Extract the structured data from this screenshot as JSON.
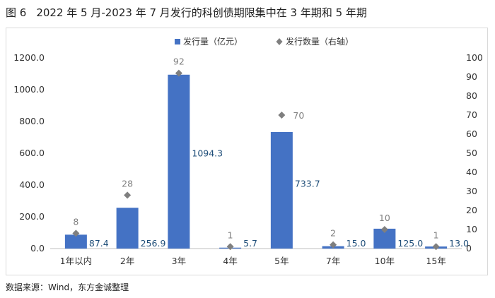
{
  "title": {
    "number": "图 6",
    "text": "2022 年 5 月-2023 年 7 月发行的科创债期限集中在 3 年期和 5 年期"
  },
  "source": "数据来源：Wind，东方金诚整理",
  "colors": {
    "bar": "#4472c4",
    "marker": "#7f7f7f",
    "bar_label": "#1f4e79",
    "count_label": "#7f7f7f"
  },
  "chart_data": {
    "type": "bar",
    "categories": [
      "1年以内",
      "2年",
      "3年",
      "4年",
      "5年",
      "7年",
      "10年",
      "15年"
    ],
    "series": [
      {
        "name": "发行量（亿元）",
        "type": "bar",
        "axis": "left",
        "values": [
          87.4,
          256.9,
          1094.3,
          5.7,
          733.7,
          15.0,
          125.0,
          13.0
        ],
        "labels": [
          "87.4",
          "256.9",
          "1094.3",
          "5.7",
          "733.7",
          "15.0",
          "125.0",
          "13.0"
        ]
      },
      {
        "name": "发行数量（右轴）",
        "type": "scatter",
        "marker": "diamond",
        "axis": "right",
        "values": [
          8,
          28,
          92,
          1,
          70,
          2,
          10,
          1
        ],
        "labels": [
          "8",
          "28",
          "92",
          "1",
          "70",
          "2",
          "10",
          "1"
        ]
      }
    ],
    "y_left": {
      "min": 0,
      "max": 1200,
      "ticks": [
        "0.0",
        "200.0",
        "400.0",
        "600.0",
        "800.0",
        "1000.0",
        "1200.0"
      ]
    },
    "y_right": {
      "min": 0,
      "max": 100,
      "ticks": [
        "0",
        "10",
        "20",
        "30",
        "40",
        "50",
        "60",
        "70",
        "80",
        "90",
        "100"
      ]
    },
    "grid": false,
    "legend_position": "top-center"
  }
}
